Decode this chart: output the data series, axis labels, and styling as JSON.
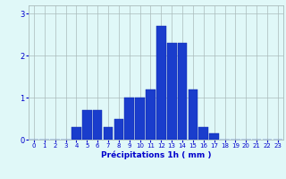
{
  "categories": [
    0,
    1,
    2,
    3,
    4,
    5,
    6,
    7,
    8,
    9,
    10,
    11,
    12,
    13,
    14,
    15,
    16,
    17,
    18,
    19,
    20,
    21,
    22,
    23
  ],
  "values": [
    0,
    0,
    0,
    0,
    0.3,
    0.7,
    0.7,
    0.3,
    0.5,
    1.0,
    1.0,
    1.2,
    2.7,
    2.3,
    2.3,
    1.2,
    0.3,
    0.15,
    0,
    0,
    0,
    0,
    0,
    0
  ],
  "bar_color": "#1a3dcc",
  "bar_edge_color": "#0a20aa",
  "background_color": "#e0f8f8",
  "grid_color": "#aabbbb",
  "xlabel": "Précipitations 1h ( mm )",
  "xlabel_fontsize": 6.5,
  "xlabel_color": "#0000cc",
  "tick_color": "#0000cc",
  "tick_fontsize": 5.0,
  "ytick_fontsize": 6.0,
  "ylim": [
    0,
    3.2
  ],
  "yticks": [
    0,
    1,
    2,
    3
  ],
  "xlim": [
    -0.5,
    23.5
  ]
}
